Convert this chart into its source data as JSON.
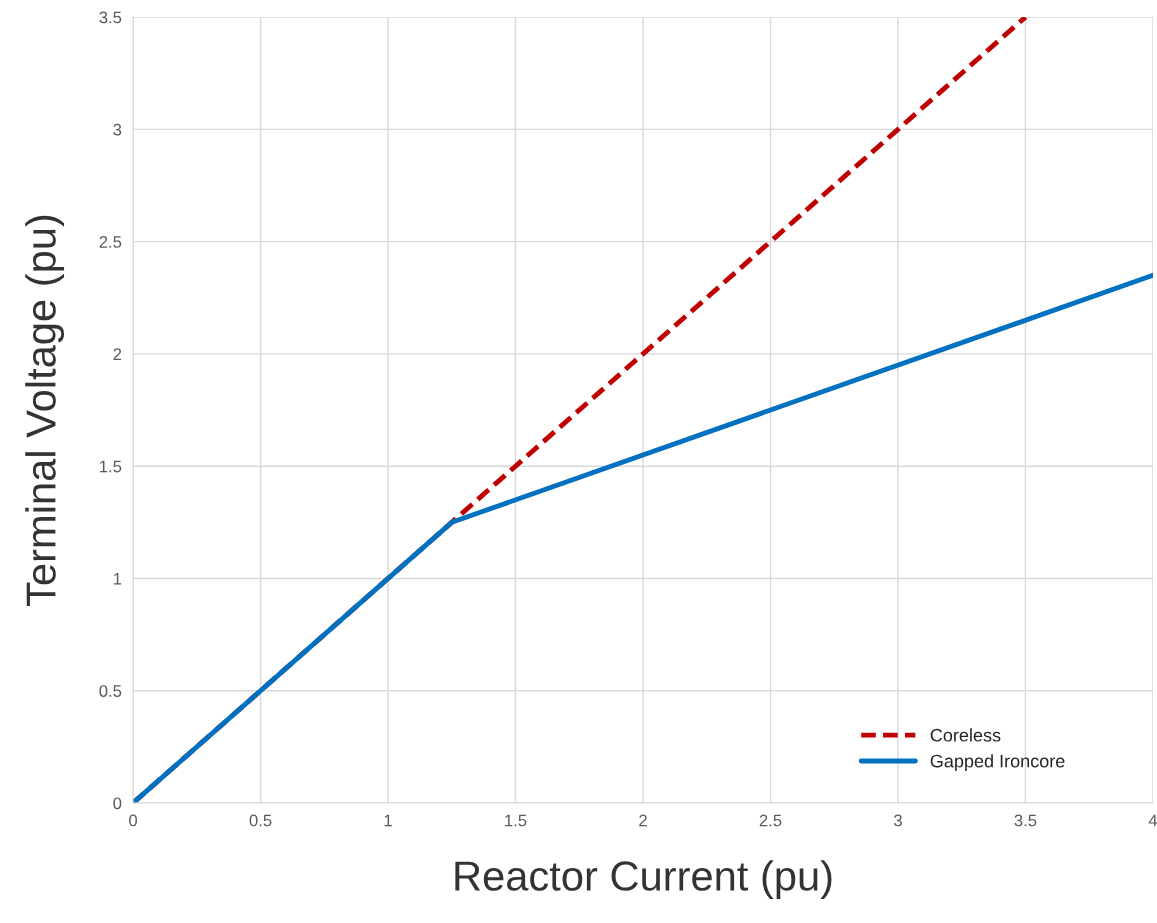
{
  "chart_data": {
    "type": "line",
    "xlabel": "Reactor Current (pu)",
    "ylabel": "Terminal Voltage (pu)",
    "xlim": [
      0,
      4
    ],
    "xticks": [
      0,
      0.5,
      1,
      1.5,
      2,
      2.5,
      3,
      3.5,
      4
    ],
    "ylim": [
      0,
      3.5
    ],
    "yticks": [
      0,
      0.5,
      1,
      1.5,
      2,
      2.5,
      3,
      3.5
    ],
    "grid": true,
    "legend": "bottom right",
    "marker": "none",
    "series": [
      {
        "name": "Coreless",
        "color": "#c00000",
        "line_style": "dashed",
        "x": [
          0,
          1.25,
          3.5
        ],
        "values": [
          0,
          1.25,
          3.5
        ]
      },
      {
        "name": "Gapped Ironcore",
        "color": "#0070c0",
        "line_style": "solid",
        "x": [
          0,
          1.25,
          4
        ],
        "values": [
          0,
          1.25,
          2.35
        ]
      }
    ]
  }
}
